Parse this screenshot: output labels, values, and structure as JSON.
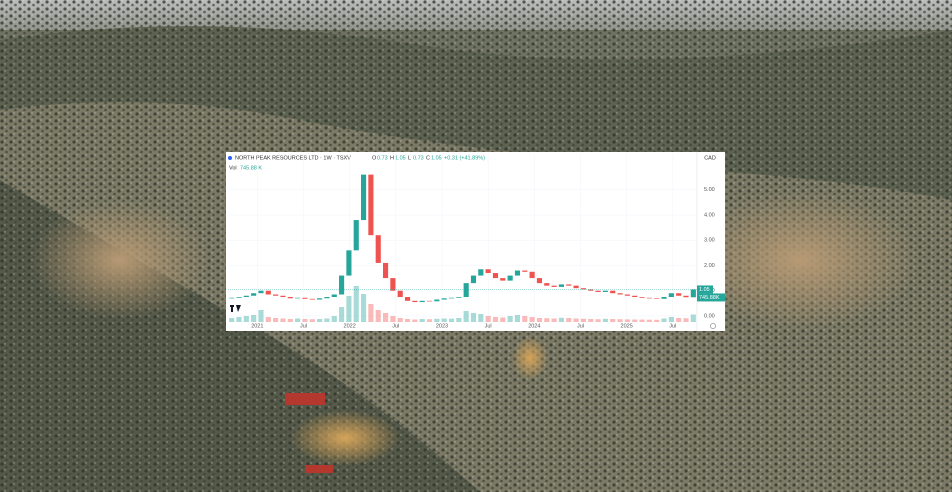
{
  "chart_data": {
    "type": "candlestick",
    "title": "NORTH PEAK RESOURCES LTD · 1W · TSXV",
    "currency": "CAD",
    "ohlc": [
      {
        "label": "O",
        "value": 0.73
      },
      {
        "label": "H",
        "value": 1.05
      },
      {
        "label": "L",
        "value": 0.73
      },
      {
        "label": "C",
        "value": 1.05
      }
    ],
    "change": "+0.31 (+41.89%)",
    "volume_label": "Vol",
    "volume_legend": "745.88 K",
    "volume_badge": "745.88K",
    "series": [
      {
        "color_up": "#26a69a",
        "color_down": "#ef5350",
        "values": [
          0.72,
          0.75,
          0.8,
          0.9,
          1.0,
          0.85,
          0.8,
          0.75,
          0.7,
          0.72,
          0.68,
          0.65,
          0.7,
          0.75,
          0.85,
          1.6,
          2.6,
          3.8,
          5.6,
          3.2,
          2.1,
          1.5,
          1.0,
          0.75,
          0.6,
          0.55,
          0.6,
          0.58,
          0.65,
          0.7,
          0.72,
          0.75,
          1.3,
          1.6,
          1.85,
          1.7,
          1.5,
          1.4,
          1.6,
          1.8,
          1.75,
          1.5,
          1.3,
          1.2,
          1.15,
          1.25,
          1.2,
          1.1,
          1.05,
          1.0,
          0.95,
          1.0,
          0.9,
          0.85,
          0.8,
          0.75,
          0.72,
          0.7,
          0.68,
          0.75,
          0.9,
          0.8,
          0.74,
          1.05
        ]
      }
    ],
    "volume": {
      "lim": [
        0,
        4000
      ],
      "values": [
        400,
        500,
        600,
        700,
        1200,
        500,
        400,
        350,
        300,
        350,
        300,
        280,
        300,
        350,
        600,
        1500,
        2600,
        3600,
        2800,
        1800,
        1200,
        900,
        600,
        400,
        300,
        250,
        300,
        280,
        320,
        350,
        330,
        400,
        1100,
        900,
        800,
        600,
        500,
        450,
        600,
        700,
        600,
        500,
        400,
        380,
        350,
        420,
        400,
        350,
        330,
        300,
        280,
        320,
        300,
        280,
        260,
        250,
        240,
        230,
        220,
        350,
        500,
        400,
        380,
        745.88
      ]
    },
    "ylim": [
      -0.24,
      6.1
    ],
    "yticks": [
      {
        "value": 0,
        "label": "0.00"
      },
      {
        "value": 1,
        "label": "1.00"
      },
      {
        "value": 2,
        "label": "2.00"
      },
      {
        "value": 3,
        "label": "3.00"
      },
      {
        "value": 4,
        "label": "4.00"
      },
      {
        "value": 5,
        "label": "5.00"
      }
    ],
    "xlim": [
      0,
      64
    ],
    "xticks": [
      {
        "value": 4,
        "label": "2021"
      },
      {
        "value": 10.3,
        "label": "Jul"
      },
      {
        "value": 16.6,
        "label": "2022"
      },
      {
        "value": 22.9,
        "label": "Jul"
      },
      {
        "value": 29.2,
        "label": "2023"
      },
      {
        "value": 35.5,
        "label": "Jul"
      },
      {
        "value": 41.8,
        "label": "2024"
      },
      {
        "value": 48.1,
        "label": "Jul"
      },
      {
        "value": 54.4,
        "label": "2025"
      },
      {
        "value": 60.7,
        "label": "Jul"
      }
    ]
  }
}
